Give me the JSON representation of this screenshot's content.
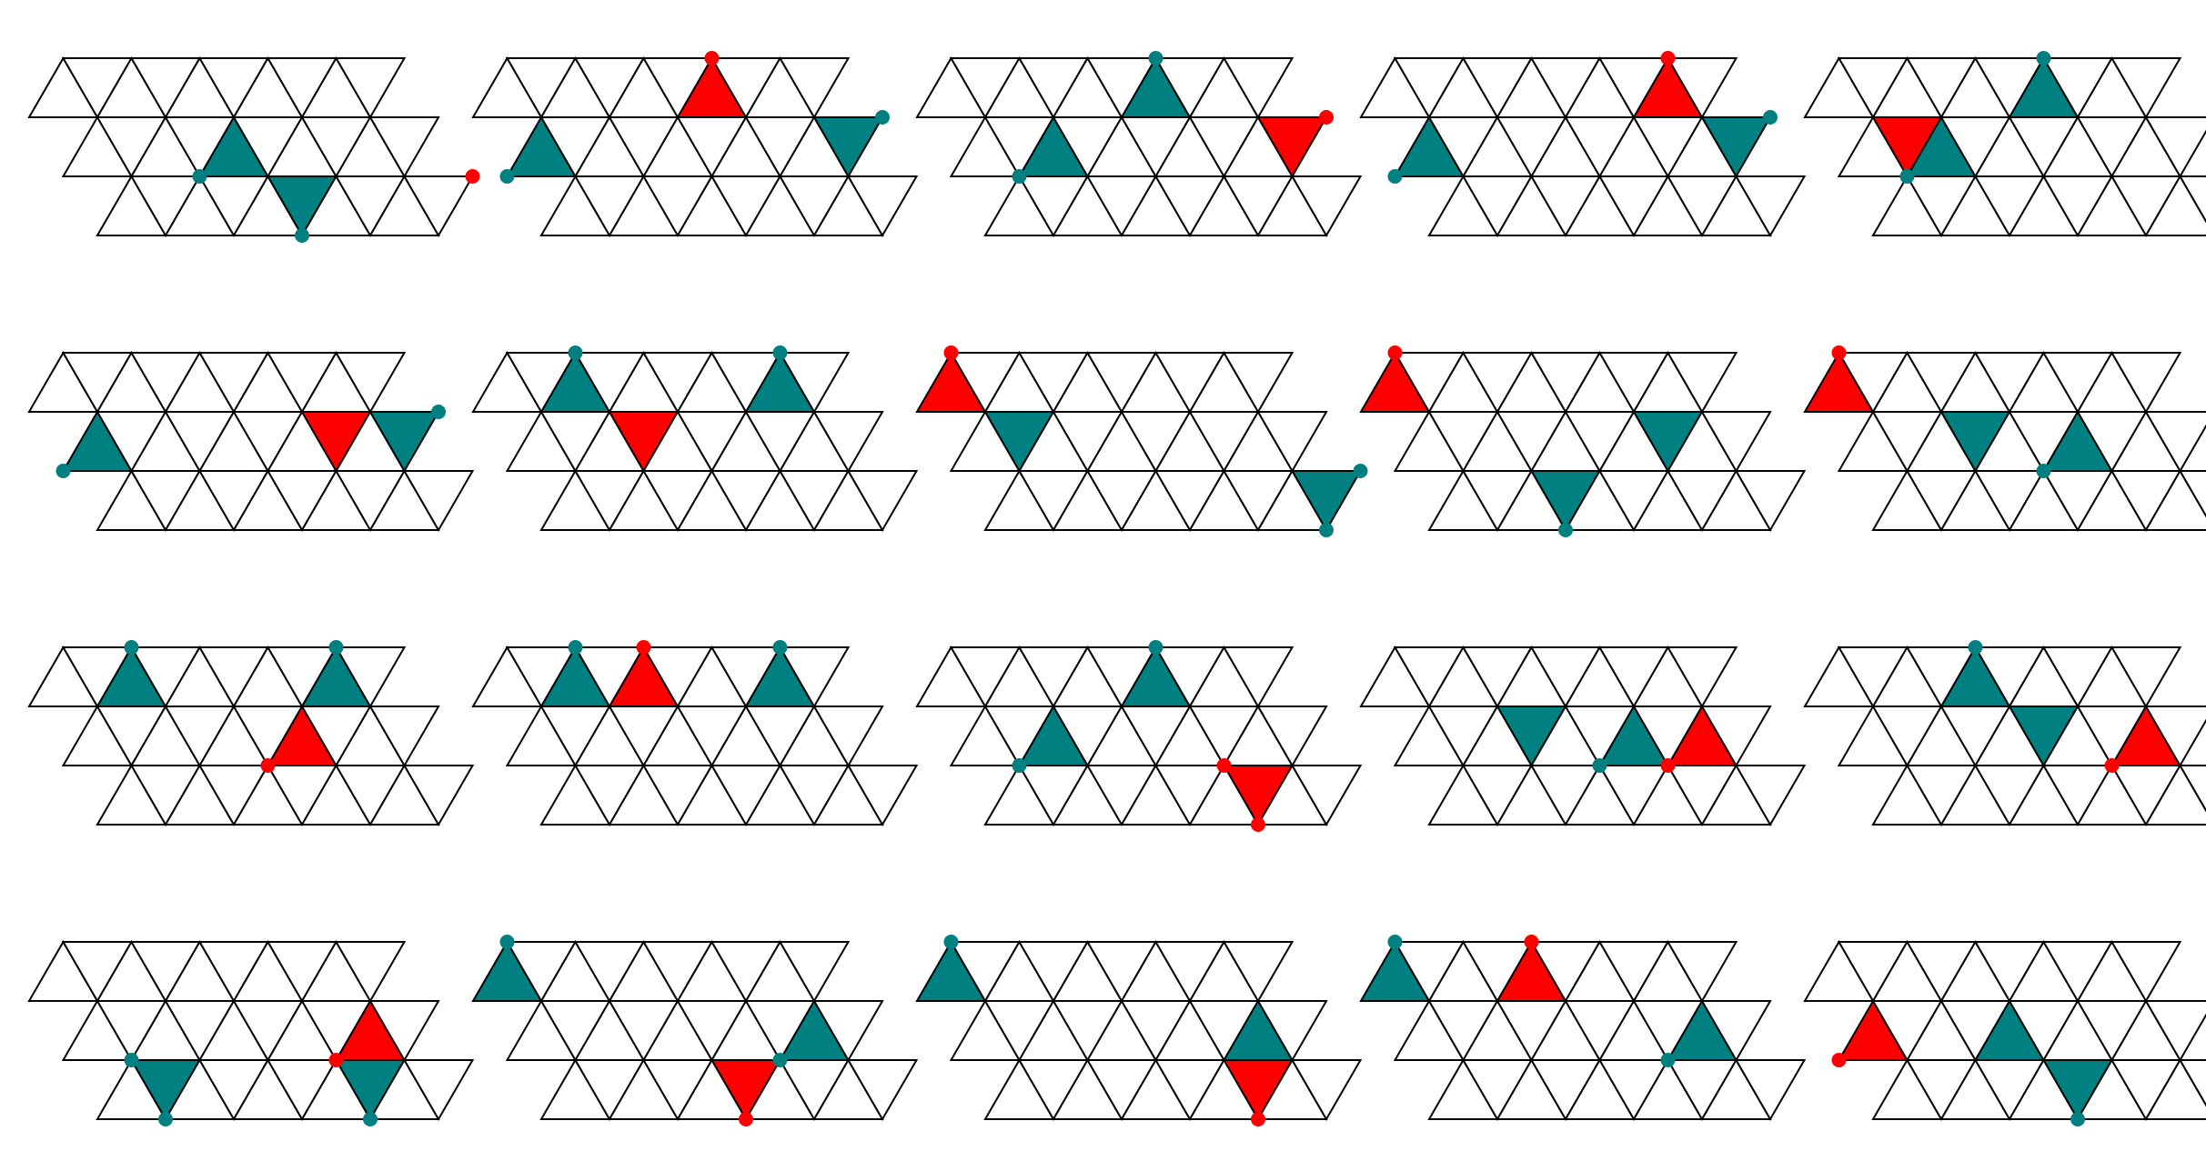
{
  "colors": {
    "teal": "#008080",
    "red": "#ff0000",
    "line": "#000000",
    "background": "#ffffff"
  },
  "grid": {
    "rows": 3,
    "up_per_row": 5,
    "down_per_row": 5
  },
  "panels": [
    {
      "grid_col_offset": 0,
      "cells": [
        {
          "color": "teal",
          "r": 1,
          "c": 4,
          "dot": "tl"
        },
        {
          "color": "teal",
          "r": 2,
          "c": 5,
          "dot": "bot"
        },
        {
          "color": "red",
          "r": 1,
          "c": 10,
          "dot": "tr"
        }
      ]
    },
    {
      "grid_col_offset": 0,
      "cells": [
        {
          "color": "teal",
          "r": 1,
          "c": 0,
          "dot": "tl"
        },
        {
          "color": "teal",
          "r": 1,
          "c": 9,
          "dot": "tr"
        },
        {
          "color": "red",
          "r": 0,
          "c": 6,
          "dot": "top"
        }
      ]
    },
    {
      "grid_col_offset": 0,
      "cells": [
        {
          "color": "teal",
          "r": 1,
          "c": 2,
          "dot": "tl"
        },
        {
          "color": "teal",
          "r": 0,
          "c": 6,
          "dot": "top"
        },
        {
          "color": "red",
          "r": 1,
          "c": 9,
          "dot": "tr"
        }
      ]
    },
    {
      "grid_col_offset": 0,
      "cells": [
        {
          "color": "teal",
          "r": 1,
          "c": 0,
          "dot": "tl"
        },
        {
          "color": "teal",
          "r": 1,
          "c": 9,
          "dot": "tr"
        },
        {
          "color": "red",
          "r": 0,
          "c": 8,
          "dot": "top"
        }
      ]
    },
    {
      "grid_col_offset": 0,
      "cells": [
        {
          "color": "teal",
          "r": 1,
          "c": 2,
          "dot": "tl"
        },
        {
          "color": "teal",
          "r": 0,
          "c": 6,
          "dot": "top"
        },
        {
          "color": "red",
          "r": 1,
          "c": 1,
          "dot": ""
        }
      ]
    },
    {
      "grid_col_offset": 0,
      "cells": [
        {
          "color": "teal",
          "r": 1,
          "c": 0,
          "dot": "tl"
        },
        {
          "color": "teal",
          "r": 1,
          "c": 9,
          "dot": "tr"
        },
        {
          "color": "red",
          "r": 1,
          "c": 7,
          "dot": ""
        }
      ]
    },
    {
      "grid_col_offset": 0,
      "cells": [
        {
          "color": "teal",
          "r": 0,
          "c": 2,
          "dot": "top"
        },
        {
          "color": "teal",
          "r": 0,
          "c": 8,
          "dot": "top"
        },
        {
          "color": "red",
          "r": 1,
          "c": 3,
          "dot": ""
        }
      ]
    },
    {
      "grid_col_offset": 0,
      "cells": [
        {
          "color": "red",
          "r": 0,
          "c": 0,
          "dot": "top"
        },
        {
          "color": "teal",
          "r": 1,
          "c": 1,
          "dot": ""
        },
        {
          "color": "teal",
          "r": 2,
          "c": 9,
          "dot": "tr"
        },
        {
          "color": "teal",
          "r": 2,
          "c": 9,
          "dot": "bot"
        }
      ]
    },
    {
      "grid_col_offset": 0,
      "cells": [
        {
          "color": "red",
          "r": 0,
          "c": 0,
          "dot": "top"
        },
        {
          "color": "teal",
          "r": 2,
          "c": 3,
          "dot": "bot"
        },
        {
          "color": "teal",
          "r": 1,
          "c": 7,
          "dot": ""
        }
      ]
    },
    {
      "grid_col_offset": 0,
      "cells": [
        {
          "color": "red",
          "r": 0,
          "c": 0,
          "dot": "top"
        },
        {
          "color": "teal",
          "r": 1,
          "c": 3,
          "dot": ""
        },
        {
          "color": "teal",
          "r": 1,
          "c": 6,
          "dot": "tl"
        }
      ]
    },
    {
      "grid_col_offset": 0,
      "cells": [
        {
          "color": "teal",
          "r": 0,
          "c": 2,
          "dot": "top"
        },
        {
          "color": "teal",
          "r": 0,
          "c": 8,
          "dot": "top"
        },
        {
          "color": "red",
          "r": 1,
          "c": 6,
          "dot": "tl"
        }
      ]
    },
    {
      "grid_col_offset": 0,
      "cells": [
        {
          "color": "teal",
          "r": 0,
          "c": 2,
          "dot": "top"
        },
        {
          "color": "red",
          "r": 0,
          "c": 4,
          "dot": "top"
        },
        {
          "color": "teal",
          "r": 0,
          "c": 8,
          "dot": "top"
        }
      ]
    },
    {
      "grid_col_offset": 0,
      "cells": [
        {
          "color": "teal",
          "r": 1,
          "c": 2,
          "dot": "tl"
        },
        {
          "color": "teal",
          "r": 0,
          "c": 6,
          "dot": "top"
        },
        {
          "color": "red",
          "r": 2,
          "c": 7,
          "dot": "tl"
        },
        {
          "color": "red",
          "r": 2,
          "c": 7,
          "dot": "bot"
        }
      ]
    },
    {
      "grid_col_offset": 0,
      "cells": [
        {
          "color": "teal",
          "r": 1,
          "c": 3,
          "dot": ""
        },
        {
          "color": "teal",
          "r": 1,
          "c": 6,
          "dot": "tl"
        },
        {
          "color": "red",
          "r": 1,
          "c": 8,
          "dot": "tl"
        }
      ]
    },
    {
      "grid_col_offset": 0,
      "cells": [
        {
          "color": "teal",
          "r": 0,
          "c": 4,
          "dot": "top"
        },
        {
          "color": "teal",
          "r": 1,
          "c": 5,
          "dot": ""
        },
        {
          "color": "red",
          "r": 1,
          "c": 8,
          "dot": "tl"
        }
      ]
    },
    {
      "grid_col_offset": 0,
      "cells": [
        {
          "color": "red",
          "r": 1,
          "c": 8,
          "dot": "tl"
        },
        {
          "color": "teal",
          "r": 2,
          "c": 1,
          "dot": "tl"
        },
        {
          "color": "teal",
          "r": 2,
          "c": 1,
          "dot": "bot"
        },
        {
          "color": "teal",
          "r": 2,
          "c": 7,
          "dot": "bot"
        }
      ]
    },
    {
      "grid_col_offset": 0,
      "cells": [
        {
          "color": "teal",
          "r": 0,
          "c": 0,
          "dot": "top"
        },
        {
          "color": "teal",
          "r": 1,
          "c": 8,
          "dot": "tl"
        },
        {
          "color": "red",
          "r": 2,
          "c": 5,
          "dot": "bot"
        }
      ]
    },
    {
      "grid_col_offset": 0,
      "cells": [
        {
          "color": "teal",
          "r": 0,
          "c": 0,
          "dot": "top"
        },
        {
          "color": "teal",
          "r": 1,
          "c": 8,
          "dot": ""
        },
        {
          "color": "red",
          "r": 2,
          "c": 7,
          "dot": "bot"
        }
      ]
    },
    {
      "grid_col_offset": 0,
      "cells": [
        {
          "color": "teal",
          "r": 0,
          "c": 0,
          "dot": "top"
        },
        {
          "color": "red",
          "r": 0,
          "c": 4,
          "dot": "top"
        },
        {
          "color": "teal",
          "r": 1,
          "c": 8,
          "dot": "tl"
        }
      ]
    },
    {
      "grid_col_offset": 0,
      "cells": [
        {
          "color": "red",
          "r": 1,
          "c": 0,
          "dot": "tl"
        },
        {
          "color": "teal",
          "r": 1,
          "c": 4,
          "dot": ""
        },
        {
          "color": "teal",
          "r": 2,
          "c": 5,
          "dot": "bot"
        }
      ]
    }
  ]
}
